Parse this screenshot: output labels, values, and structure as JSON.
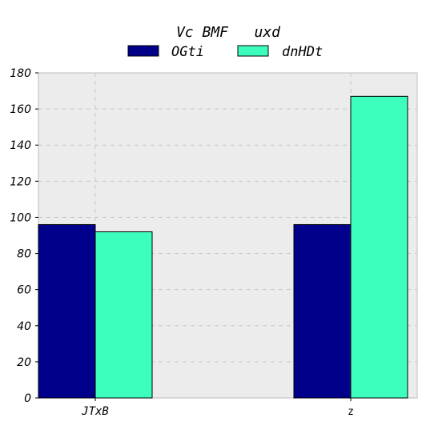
{
  "chart_data": {
    "type": "bar",
    "title": "Vc BMF   uxd",
    "xlabel": "",
    "ylabel": "",
    "categories": [
      "JTxB",
      "z"
    ],
    "series": [
      {
        "name": "OGti",
        "values": [
          96,
          96
        ],
        "color": "#00008b"
      },
      {
        "name": "dnHDt",
        "values": [
          92,
          167
        ],
        "color": "#3dffbd"
      }
    ],
    "ylim": [
      0,
      180
    ],
    "yticks": [
      0,
      20,
      40,
      60,
      80,
      100,
      120,
      140,
      160,
      180
    ],
    "grid": true,
    "legend_position": "top-center",
    "plot_background": "#ececec"
  }
}
